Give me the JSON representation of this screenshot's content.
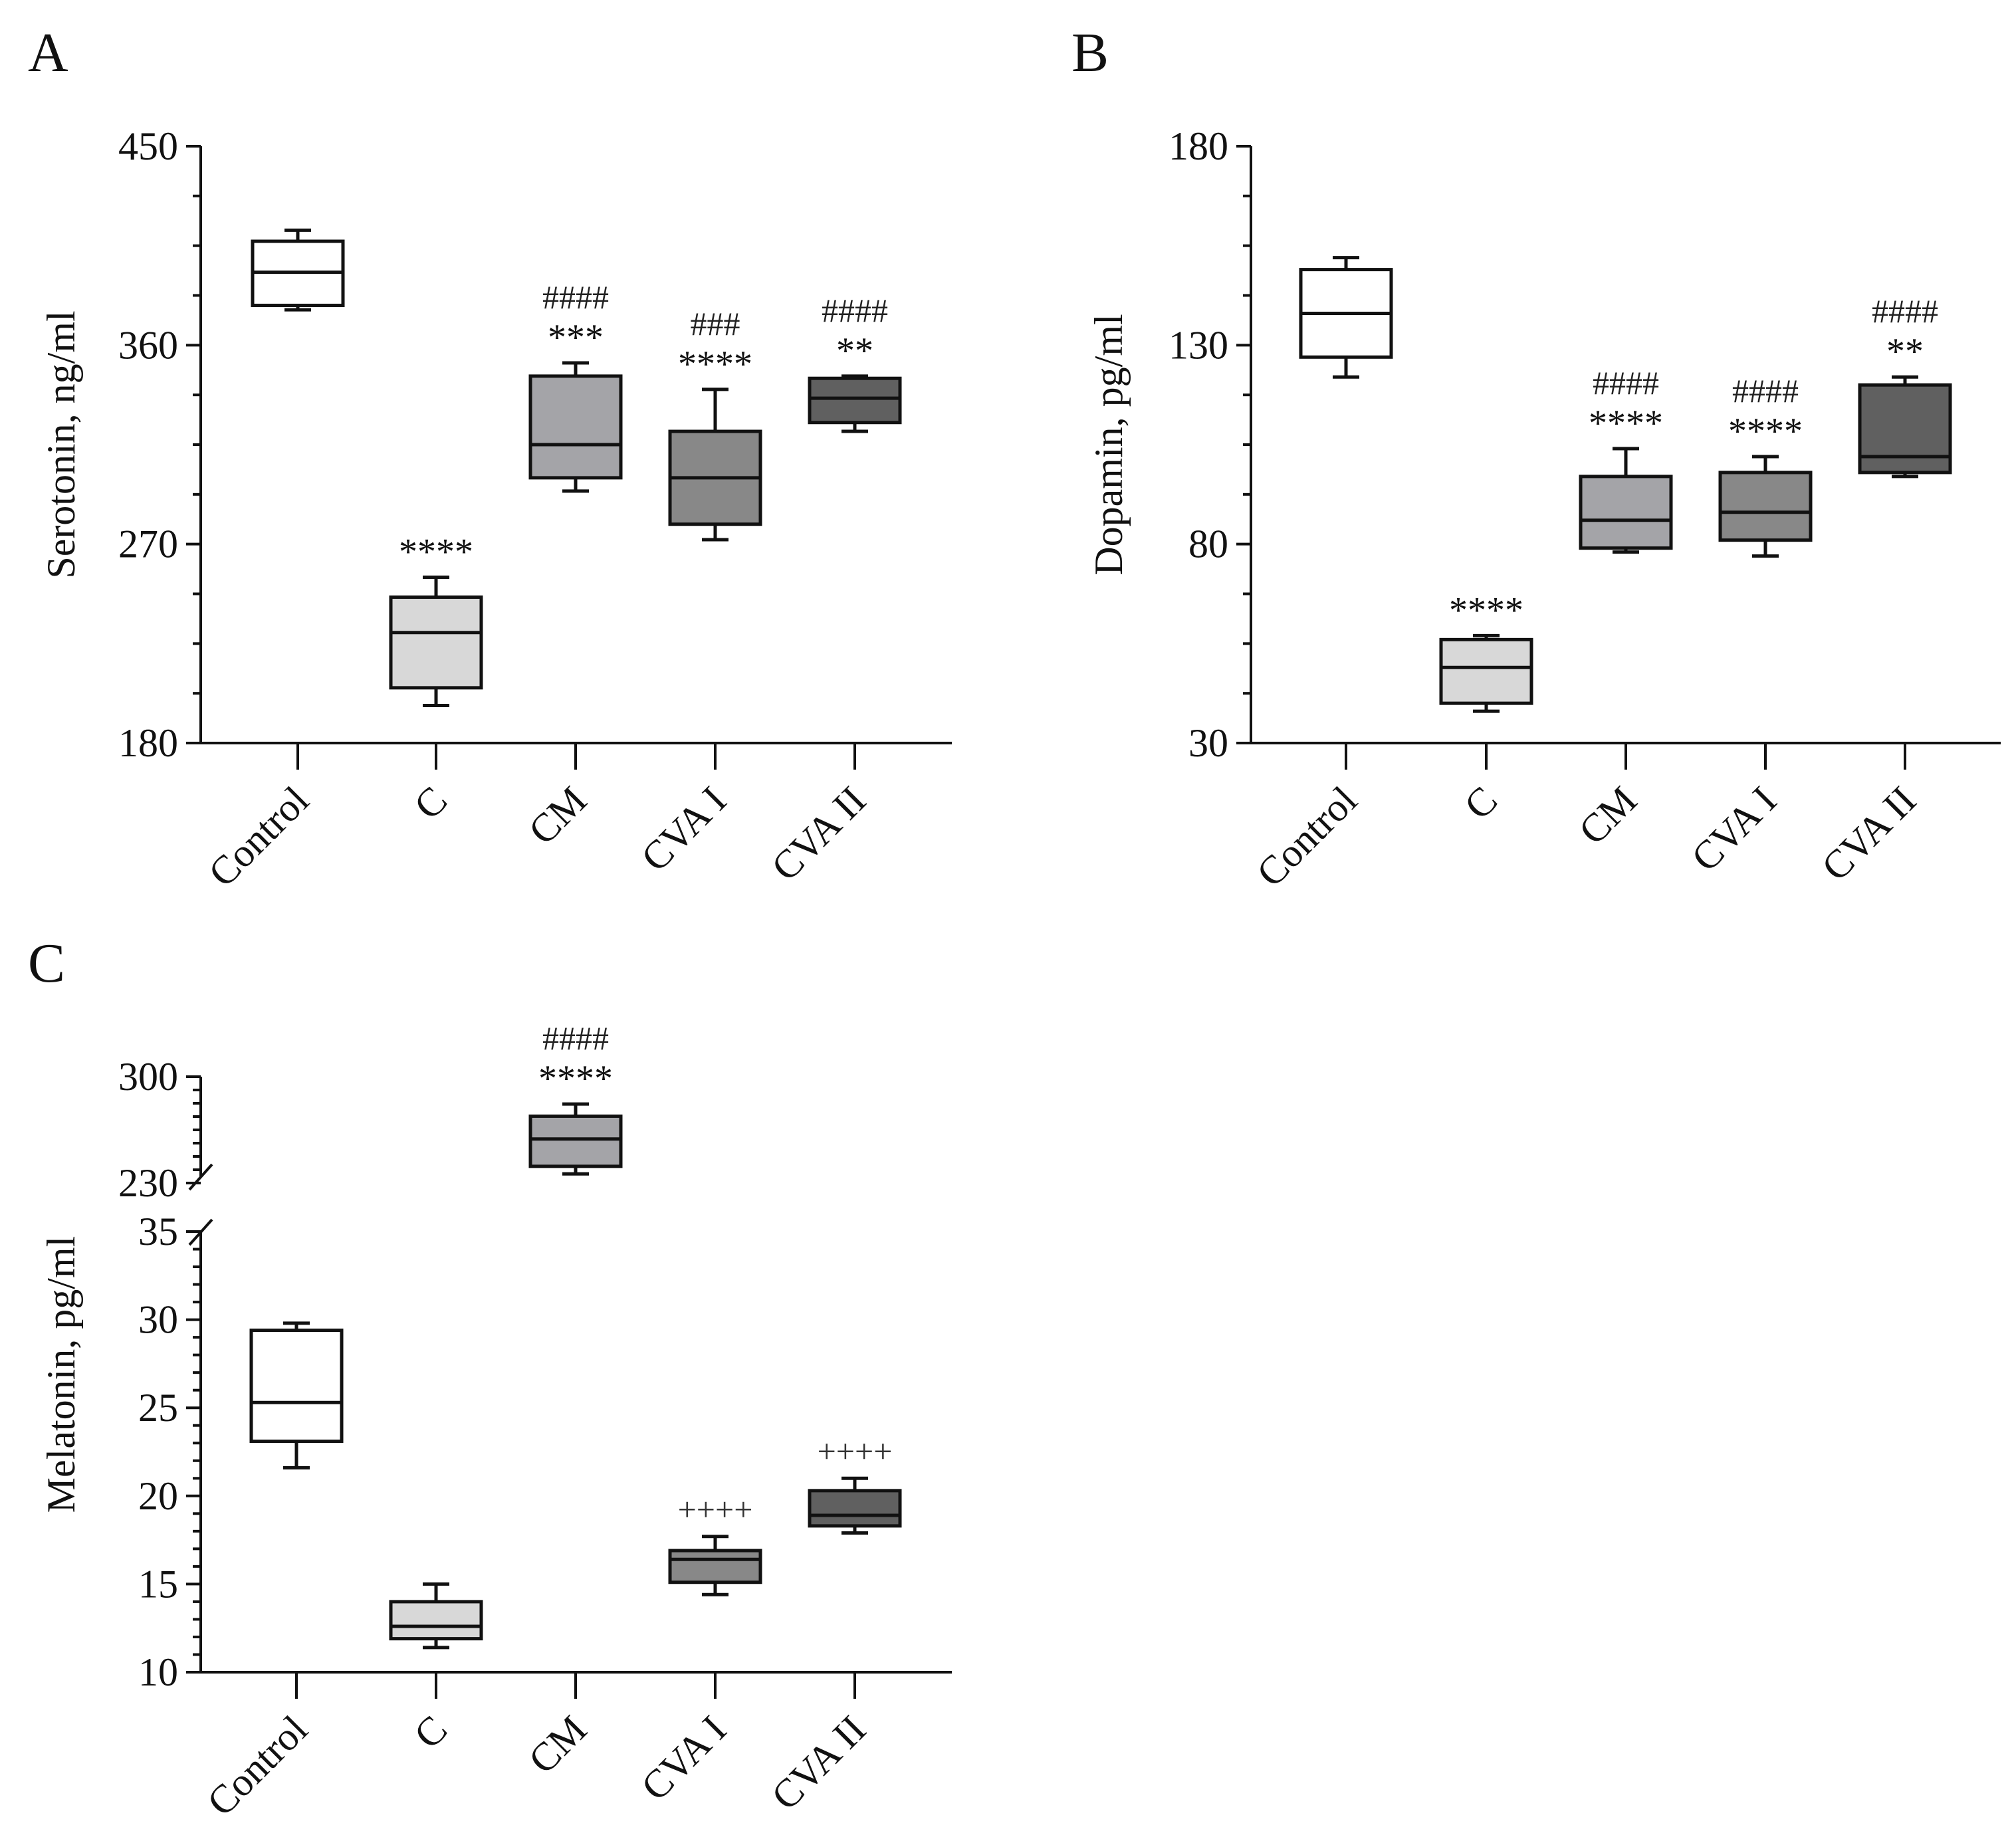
{
  "figure": {
    "panels": [
      "A",
      "B",
      "C"
    ]
  },
  "colors": {
    "Control": "#ffffff",
    "C": "#d8d8d8",
    "CM": "#a4a4a8",
    "CVA I": "#888888",
    "CVA II": "#606060"
  },
  "chart_data": [
    {
      "panel": "A",
      "type": "box",
      "title": "",
      "xlabel": "",
      "ylabel": "Serotonin, ng/ml",
      "ylim": [
        180,
        450
      ],
      "yticks": [
        "180",
        "270",
        "360",
        "450"
      ],
      "minor_ticks_per_interval": 3,
      "categories": [
        "Control",
        "C",
        "CM",
        "CVA I",
        "CVA II"
      ],
      "boxes": [
        {
          "min": 376,
          "q1": 378,
          "median": 393,
          "q3": 407,
          "max": 412
        },
        {
          "min": 197,
          "q1": 205,
          "median": 230,
          "q3": 246,
          "max": 255
        },
        {
          "min": 294,
          "q1": 300,
          "median": 315,
          "q3": 346,
          "max": 352
        },
        {
          "min": 272,
          "q1": 279,
          "median": 300,
          "q3": 321,
          "max": 340
        },
        {
          "min": 321,
          "q1": 325,
          "median": 336,
          "q3": 345,
          "max": 346
        }
      ],
      "annotations": [
        {
          "category": "Control",
          "star": "",
          "hash": "",
          "plus": ""
        },
        {
          "category": "C",
          "star": "****",
          "hash": "",
          "plus": ""
        },
        {
          "category": "CM",
          "star": "***",
          "hash": "####",
          "plus": ""
        },
        {
          "category": "CVA I",
          "star": "****",
          "hash": "###",
          "plus": ""
        },
        {
          "category": "CVA II",
          "star": "**",
          "hash": "####",
          "plus": ""
        }
      ]
    },
    {
      "panel": "B",
      "type": "box",
      "title": "",
      "xlabel": "",
      "ylabel": "Dopamin, pg/ml",
      "ylim": [
        30,
        180
      ],
      "yticks": [
        "30",
        "80",
        "130",
        "180"
      ],
      "minor_ticks_per_interval": 3,
      "categories": [
        "Control",
        "C",
        "CM",
        "CVA I",
        "CVA II"
      ],
      "boxes": [
        {
          "min": 122,
          "q1": 127,
          "median": 138,
          "q3": 149,
          "max": 152
        },
        {
          "min": 38,
          "q1": 40,
          "median": 49,
          "q3": 56,
          "max": 57
        },
        {
          "min": 78,
          "q1": 79,
          "median": 86,
          "q3": 97,
          "max": 104
        },
        {
          "min": 77,
          "q1": 81,
          "median": 88,
          "q3": 98,
          "max": 102
        },
        {
          "min": 97,
          "q1": 98,
          "median": 102,
          "q3": 120,
          "max": 122
        }
      ],
      "annotations": [
        {
          "category": "Control",
          "star": "",
          "hash": "",
          "plus": ""
        },
        {
          "category": "C",
          "star": "****",
          "hash": "",
          "plus": ""
        },
        {
          "category": "CM",
          "star": "****",
          "hash": "####",
          "plus": ""
        },
        {
          "category": "CVA I",
          "star": "****",
          "hash": "####",
          "plus": ""
        },
        {
          "category": "CVA II",
          "star": "**",
          "hash": "####",
          "plus": ""
        }
      ]
    },
    {
      "panel": "C",
      "type": "box",
      "title": "",
      "xlabel": "",
      "ylabel": "Melatonin, pg/ml",
      "broken_axis": true,
      "segments": [
        {
          "range": [
            10,
            35
          ],
          "yticks": [
            "10",
            "15",
            "20",
            "25",
            "30",
            "35"
          ]
        },
        {
          "range": [
            230,
            300
          ],
          "yticks": [
            "230",
            "300"
          ]
        }
      ],
      "categories": [
        "Control",
        "C",
        "CM",
        "CVA I",
        "CVA II"
      ],
      "boxes": [
        {
          "min": 21.6,
          "q1": 23.1,
          "median": 25.3,
          "q3": 29.4,
          "max": 29.8,
          "segment": 0
        },
        {
          "min": 11.4,
          "q1": 11.9,
          "median": 12.6,
          "q3": 14.0,
          "max": 15.0,
          "segment": 0
        },
        {
          "min": 236,
          "q1": 241,
          "median": 259,
          "q3": 274,
          "max": 282,
          "segment": 1
        },
        {
          "min": 14.4,
          "q1": 15.1,
          "median": 16.4,
          "q3": 16.9,
          "max": 17.7,
          "segment": 0
        },
        {
          "min": 17.9,
          "q1": 18.3,
          "median": 18.9,
          "q3": 20.3,
          "max": 21.0,
          "segment": 0
        }
      ],
      "annotations": [
        {
          "category": "Control",
          "star": "",
          "hash": "",
          "plus": ""
        },
        {
          "category": "C",
          "star": "",
          "hash": "",
          "plus": ""
        },
        {
          "category": "CM",
          "star": "****",
          "hash": "####",
          "plus": ""
        },
        {
          "category": "CVA I",
          "star": "",
          "hash": "",
          "plus": "++++"
        },
        {
          "category": "CVA II",
          "star": "",
          "hash": "",
          "plus": "++++"
        }
      ]
    }
  ]
}
